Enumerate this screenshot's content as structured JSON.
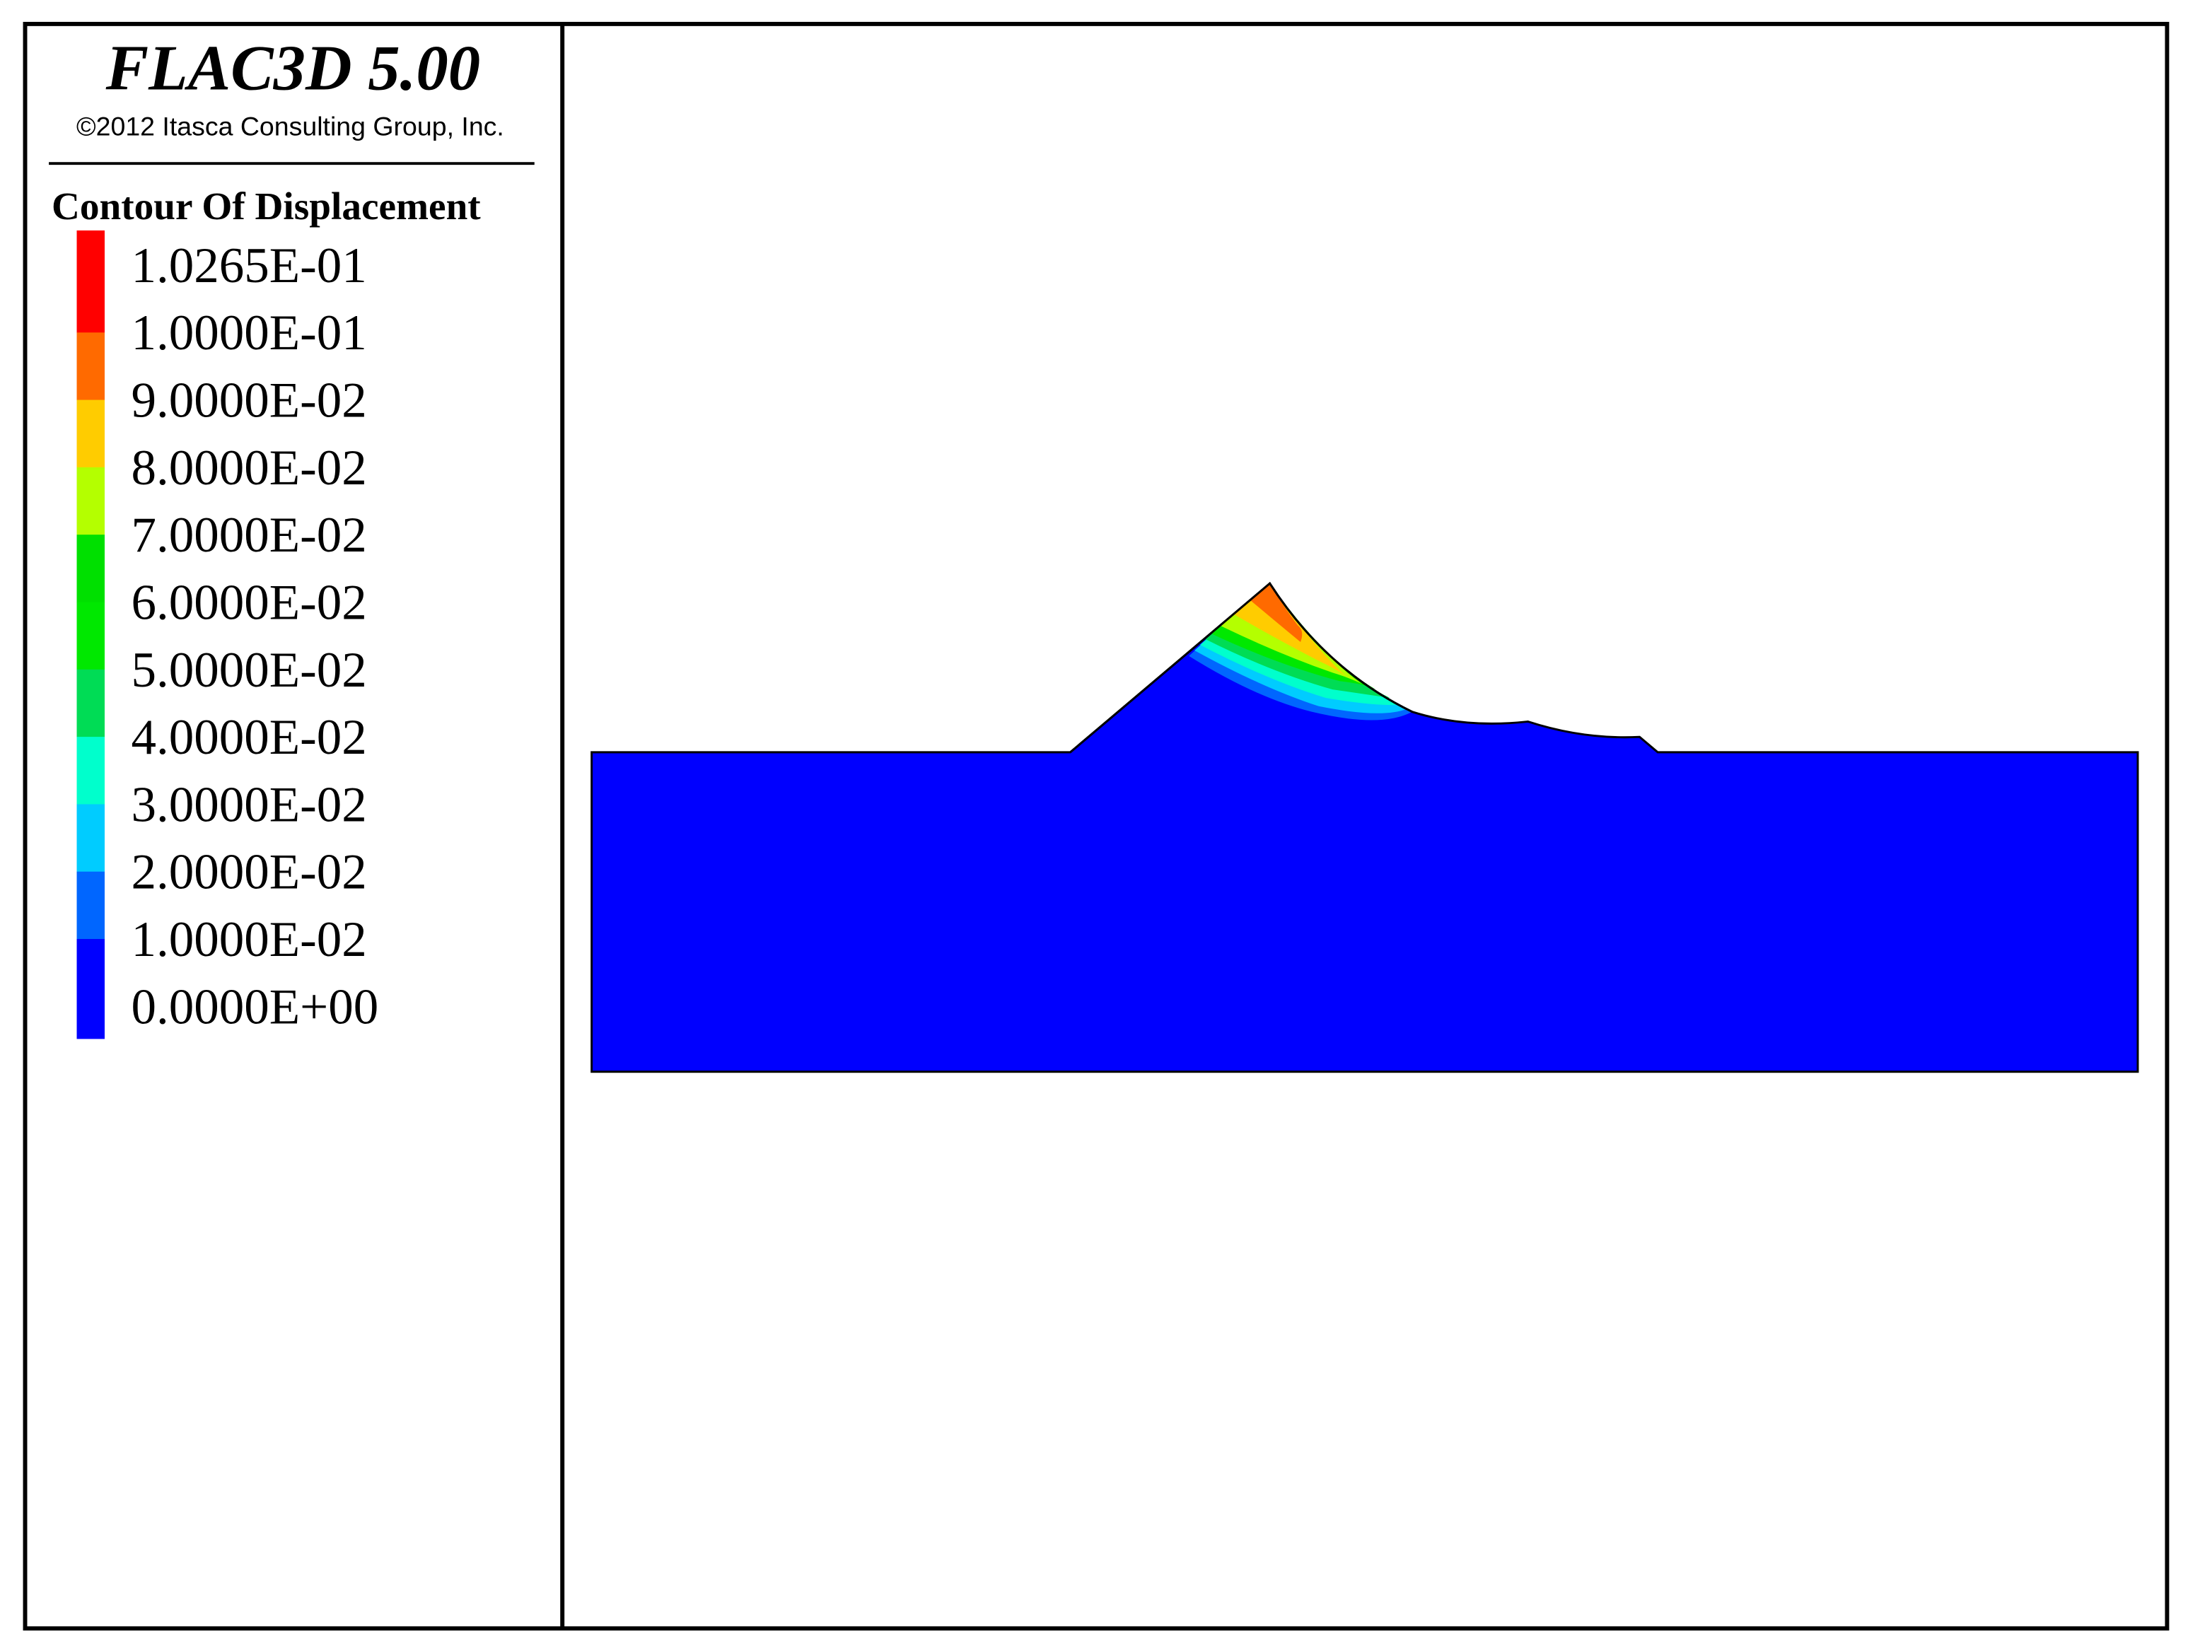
{
  "header": {
    "title": "FLAC3D 5.00",
    "copyright": "©2012 Itasca Consulting Group, Inc."
  },
  "legend": {
    "title": "Contour Of Displacement",
    "labels": [
      "1.0265E-01",
      "1.0000E-01",
      "9.0000E-02",
      "8.0000E-02",
      "7.0000E-02",
      "6.0000E-02",
      "5.0000E-02",
      "4.0000E-02",
      "3.0000E-02",
      "2.0000E-02",
      "1.0000E-02",
      "0.0000E+00"
    ],
    "colors": [
      "#ff0000",
      "#ff6a00",
      "#ffcc00",
      "#b4ff00",
      "#00e000",
      "#00e800",
      "#00dc55",
      "#00ffcc",
      "#00ccff",
      "#0066ff",
      "#0000ff"
    ]
  }
}
